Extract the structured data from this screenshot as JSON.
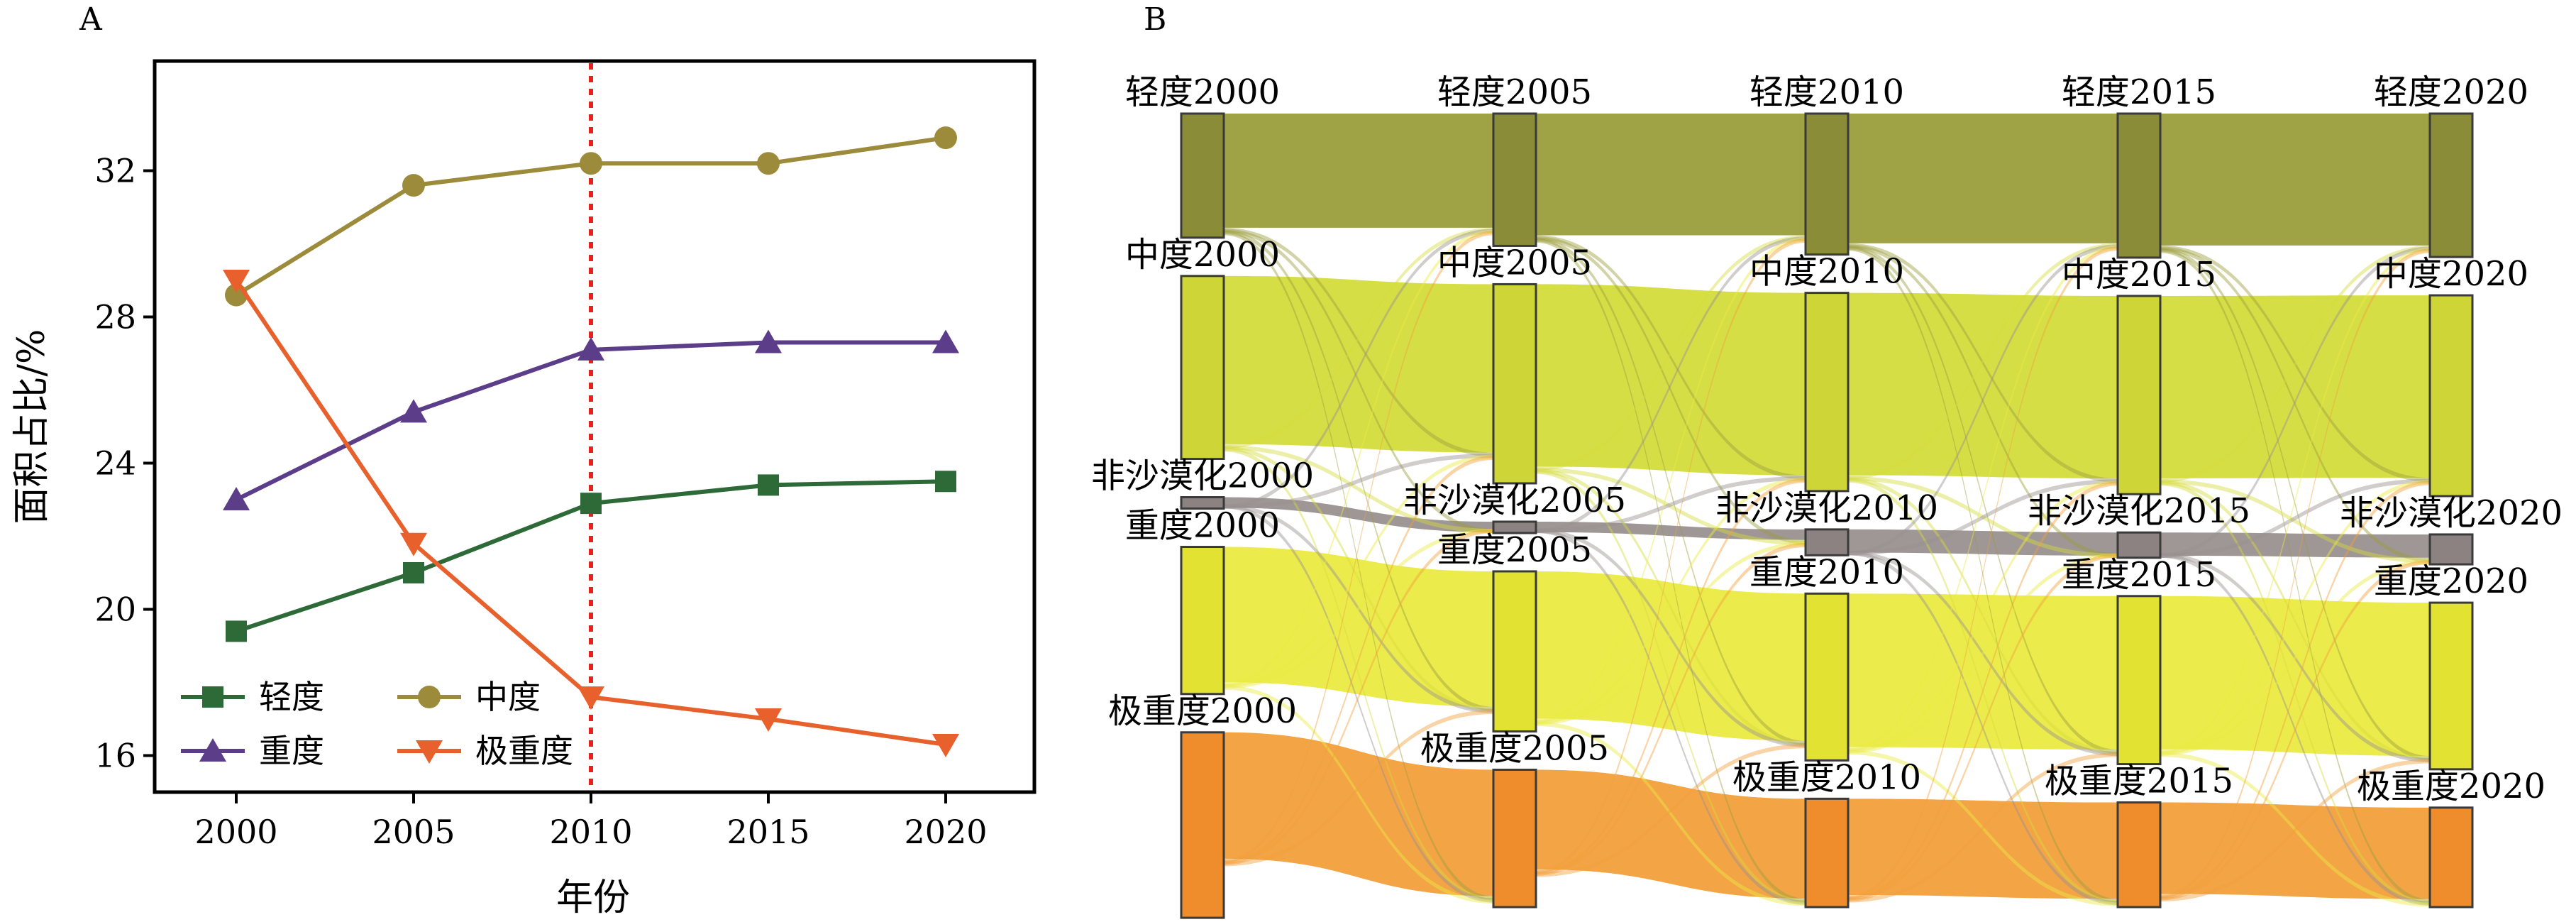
{
  "chart_data": [
    {
      "type": "line",
      "panel_label": "A",
      "x": [
        2000,
        2005,
        2010,
        2015,
        2020
      ],
      "xlabel": "年份",
      "ylabel": "面积占比/%",
      "xticks": [
        "2000",
        "2005",
        "2010",
        "2015",
        "2020"
      ],
      "yticks": [
        "16",
        "20",
        "24",
        "28",
        "32"
      ],
      "xlim": [
        1997.7,
        2022.5
      ],
      "ylim": [
        15,
        35
      ],
      "reference_line": {
        "x": 2010,
        "color": "#e8211e",
        "style": "dotted"
      },
      "legend_position": "lower-left",
      "series": [
        {
          "name": "轻度",
          "color": "#2e6a38",
          "marker": "square",
          "values": [
            19.4,
            21.0,
            22.9,
            23.4,
            23.5
          ]
        },
        {
          "name": "中度",
          "color": "#9b8b3a",
          "marker": "circle",
          "values": [
            28.6,
            31.6,
            32.2,
            32.2,
            32.9
          ]
        },
        {
          "name": "重度",
          "color": "#5b3d8a",
          "marker": "triangle-up",
          "values": [
            23.0,
            25.4,
            27.1,
            27.3,
            27.3
          ]
        },
        {
          "name": "极重度",
          "color": "#e8612c",
          "marker": "triangle-down",
          "values": [
            29.0,
            21.8,
            17.6,
            17.0,
            16.3
          ]
        }
      ]
    },
    {
      "type": "sankey",
      "panel_label": "B",
      "years": [
        "2000",
        "2005",
        "2010",
        "2015",
        "2020"
      ],
      "categories": [
        {
          "id": "light",
          "name": "轻度",
          "color": "#8a8c38",
          "flow_color": "#9b9d3c",
          "shares": [
            19.4,
            21.0,
            22.9,
            23.4,
            23.5
          ]
        },
        {
          "id": "moderate",
          "name": "中度",
          "color": "#cdd636",
          "flow_color": "#d4dc3c",
          "shares": [
            28.6,
            31.6,
            32.2,
            32.2,
            32.9
          ]
        },
        {
          "id": "none",
          "name": "非沙漠化",
          "color": "#8c8282",
          "flow_color": "#9a9090",
          "shares": [
            0.1,
            1.8,
            4.2,
            4.1,
            4.9
          ]
        },
        {
          "id": "severe",
          "name": "重度",
          "color": "#e2e232",
          "flow_color": "#eaea42",
          "shares": [
            23.0,
            25.4,
            27.1,
            27.3,
            27.3
          ]
        },
        {
          "id": "extreme",
          "name": "极重度",
          "color": "#ef8c2c",
          "flow_color": "#f2a03c",
          "shares": [
            29.0,
            21.8,
            17.6,
            17.0,
            16.3
          ]
        }
      ],
      "node_labels": [
        [
          "轻度2000",
          "中度2000",
          "非沙漠化2000",
          "重度2000",
          "极重度2000"
        ],
        [
          "轻度2005",
          "中度2005",
          "非沙漠化2005",
          "重度2005",
          "极重度2005"
        ],
        [
          "轻度2010",
          "中度2010",
          "非沙漠化2010",
          "重度2010",
          "极重度2010"
        ],
        [
          "轻度2015",
          "中度2015",
          "非沙漠化2015",
          "重度2015",
          "极重度2015"
        ],
        [
          "轻度2020",
          "中度2020",
          "非沙漠化2020",
          "重度2020",
          "极重度2020"
        ]
      ]
    }
  ]
}
